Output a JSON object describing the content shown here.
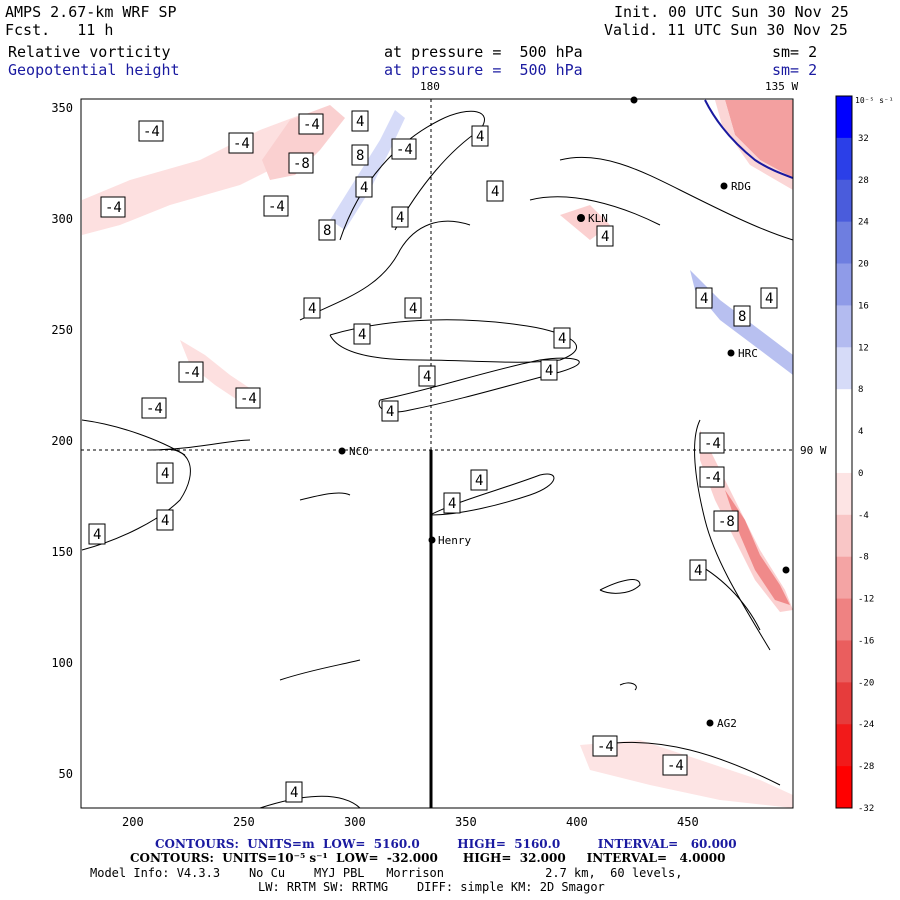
{
  "header": {
    "model_title": "AMPS 2.67-km WRF SP",
    "forecast": "Fcst.   11 h",
    "init": "Init. 00 UTC Sun 30 Nov 25",
    "valid": "Valid. 11 UTC Sun 30 Nov 25",
    "field1": "Relative vorticity",
    "field2": "Geopotential height",
    "level1": "at pressure =  500 hPa",
    "level2": "at pressure =  500 hPa",
    "sm1": "sm= 2",
    "sm2": "sm= 2"
  },
  "map": {
    "top_meridian_label": "180",
    "top_right_meridian_label": "135 W",
    "right_parallel_label": "90 W",
    "x_ticks": [
      "200",
      "250",
      "300",
      "350",
      "400",
      "450"
    ],
    "y_ticks": [
      "350",
      "300",
      "250",
      "200",
      "150",
      "100",
      "50"
    ],
    "stations": [
      {
        "name": "NCO"
      },
      {
        "name": "Henry"
      },
      {
        "name": "RDG"
      },
      {
        "name": "KLN"
      },
      {
        "name": "HRC"
      },
      {
        "name": "AG2"
      }
    ],
    "contour_labels": [
      "-4",
      "-8",
      "4",
      "8"
    ]
  },
  "colorbar": {
    "unit_label": "10⁻⁵ s⁻¹",
    "ticks": [
      "32",
      "28",
      "24",
      "20",
      "16",
      "12",
      "8",
      "4",
      "0",
      "-4",
      "-8",
      "-12",
      "-16",
      "-20",
      "-24",
      "-28",
      "-32"
    ],
    "colors": [
      "#0000ff",
      "#2b3fe8",
      "#4a5cdc",
      "#6e7ee0",
      "#8f9be8",
      "#b3bbf0",
      "#d6dbf8",
      "#ffffff",
      "#ffffff",
      "#fde4e4",
      "#f9c6c6",
      "#f4a4a4",
      "#ef8282",
      "#ea5e5e",
      "#e63c3c",
      "#f21a1a",
      "#ff0000"
    ]
  },
  "footer": {
    "line1": "CONTOURS:  UNITS=m  LOW=  5160.0         HIGH=  5160.0         INTERVAL=   60.000",
    "line2": "CONTOURS:  UNITS=10⁻⁵ s⁻¹  LOW=  -32.000      HIGH=  32.000     INTERVAL=   4.0000",
    "line3": "Model Info: V4.3.3    No Cu    MYJ PBL   Morrison              2.7 km,  60 levels,",
    "line4": "LW: RRTM SW: RRTMG    DIFF: simple KM: 2D Smagor"
  }
}
